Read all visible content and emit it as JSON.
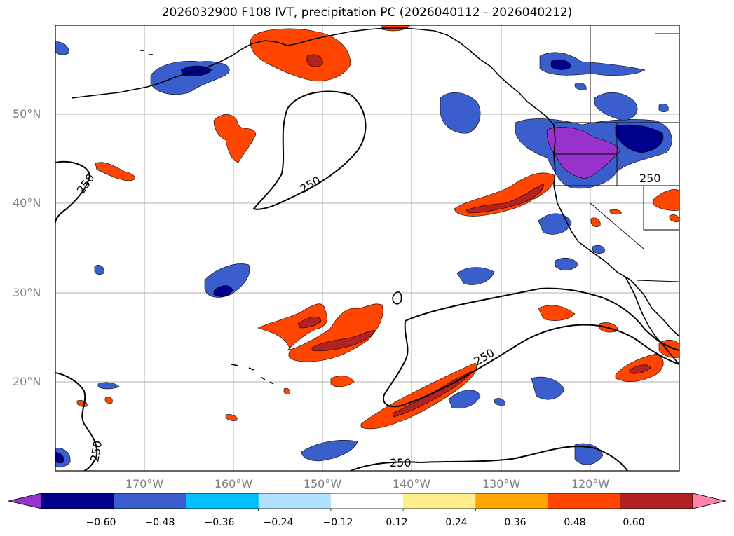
{
  "title": "2026032900 F108 IVT, precipitation PC (2026040112 - 2026040212)",
  "map": {
    "lon_range": [
      -180,
      -110
    ],
    "lat_range": [
      10,
      60
    ],
    "lat_labels": [
      "50°N",
      "40°N",
      "30°N",
      "20°N"
    ],
    "lon_labels": [
      "170°W",
      "160°W",
      "150°W",
      "140°W",
      "130°W",
      "120°W"
    ],
    "contour_level_label": "250"
  },
  "colorbar": {
    "ticks": [
      "−0.60",
      "−0.48",
      "−0.36",
      "−0.24",
      "−0.12",
      "0.12",
      "0.24",
      "0.36",
      "0.48",
      "0.60"
    ],
    "colors": [
      "#9932cc",
      "#00008b",
      "#3a5fcd",
      "#00bfff",
      "#b0e2ff",
      "#ffffff",
      "#ffec8b",
      "#ffa500",
      "#ff4500",
      "#b22222",
      "#ff82ab"
    ]
  }
}
